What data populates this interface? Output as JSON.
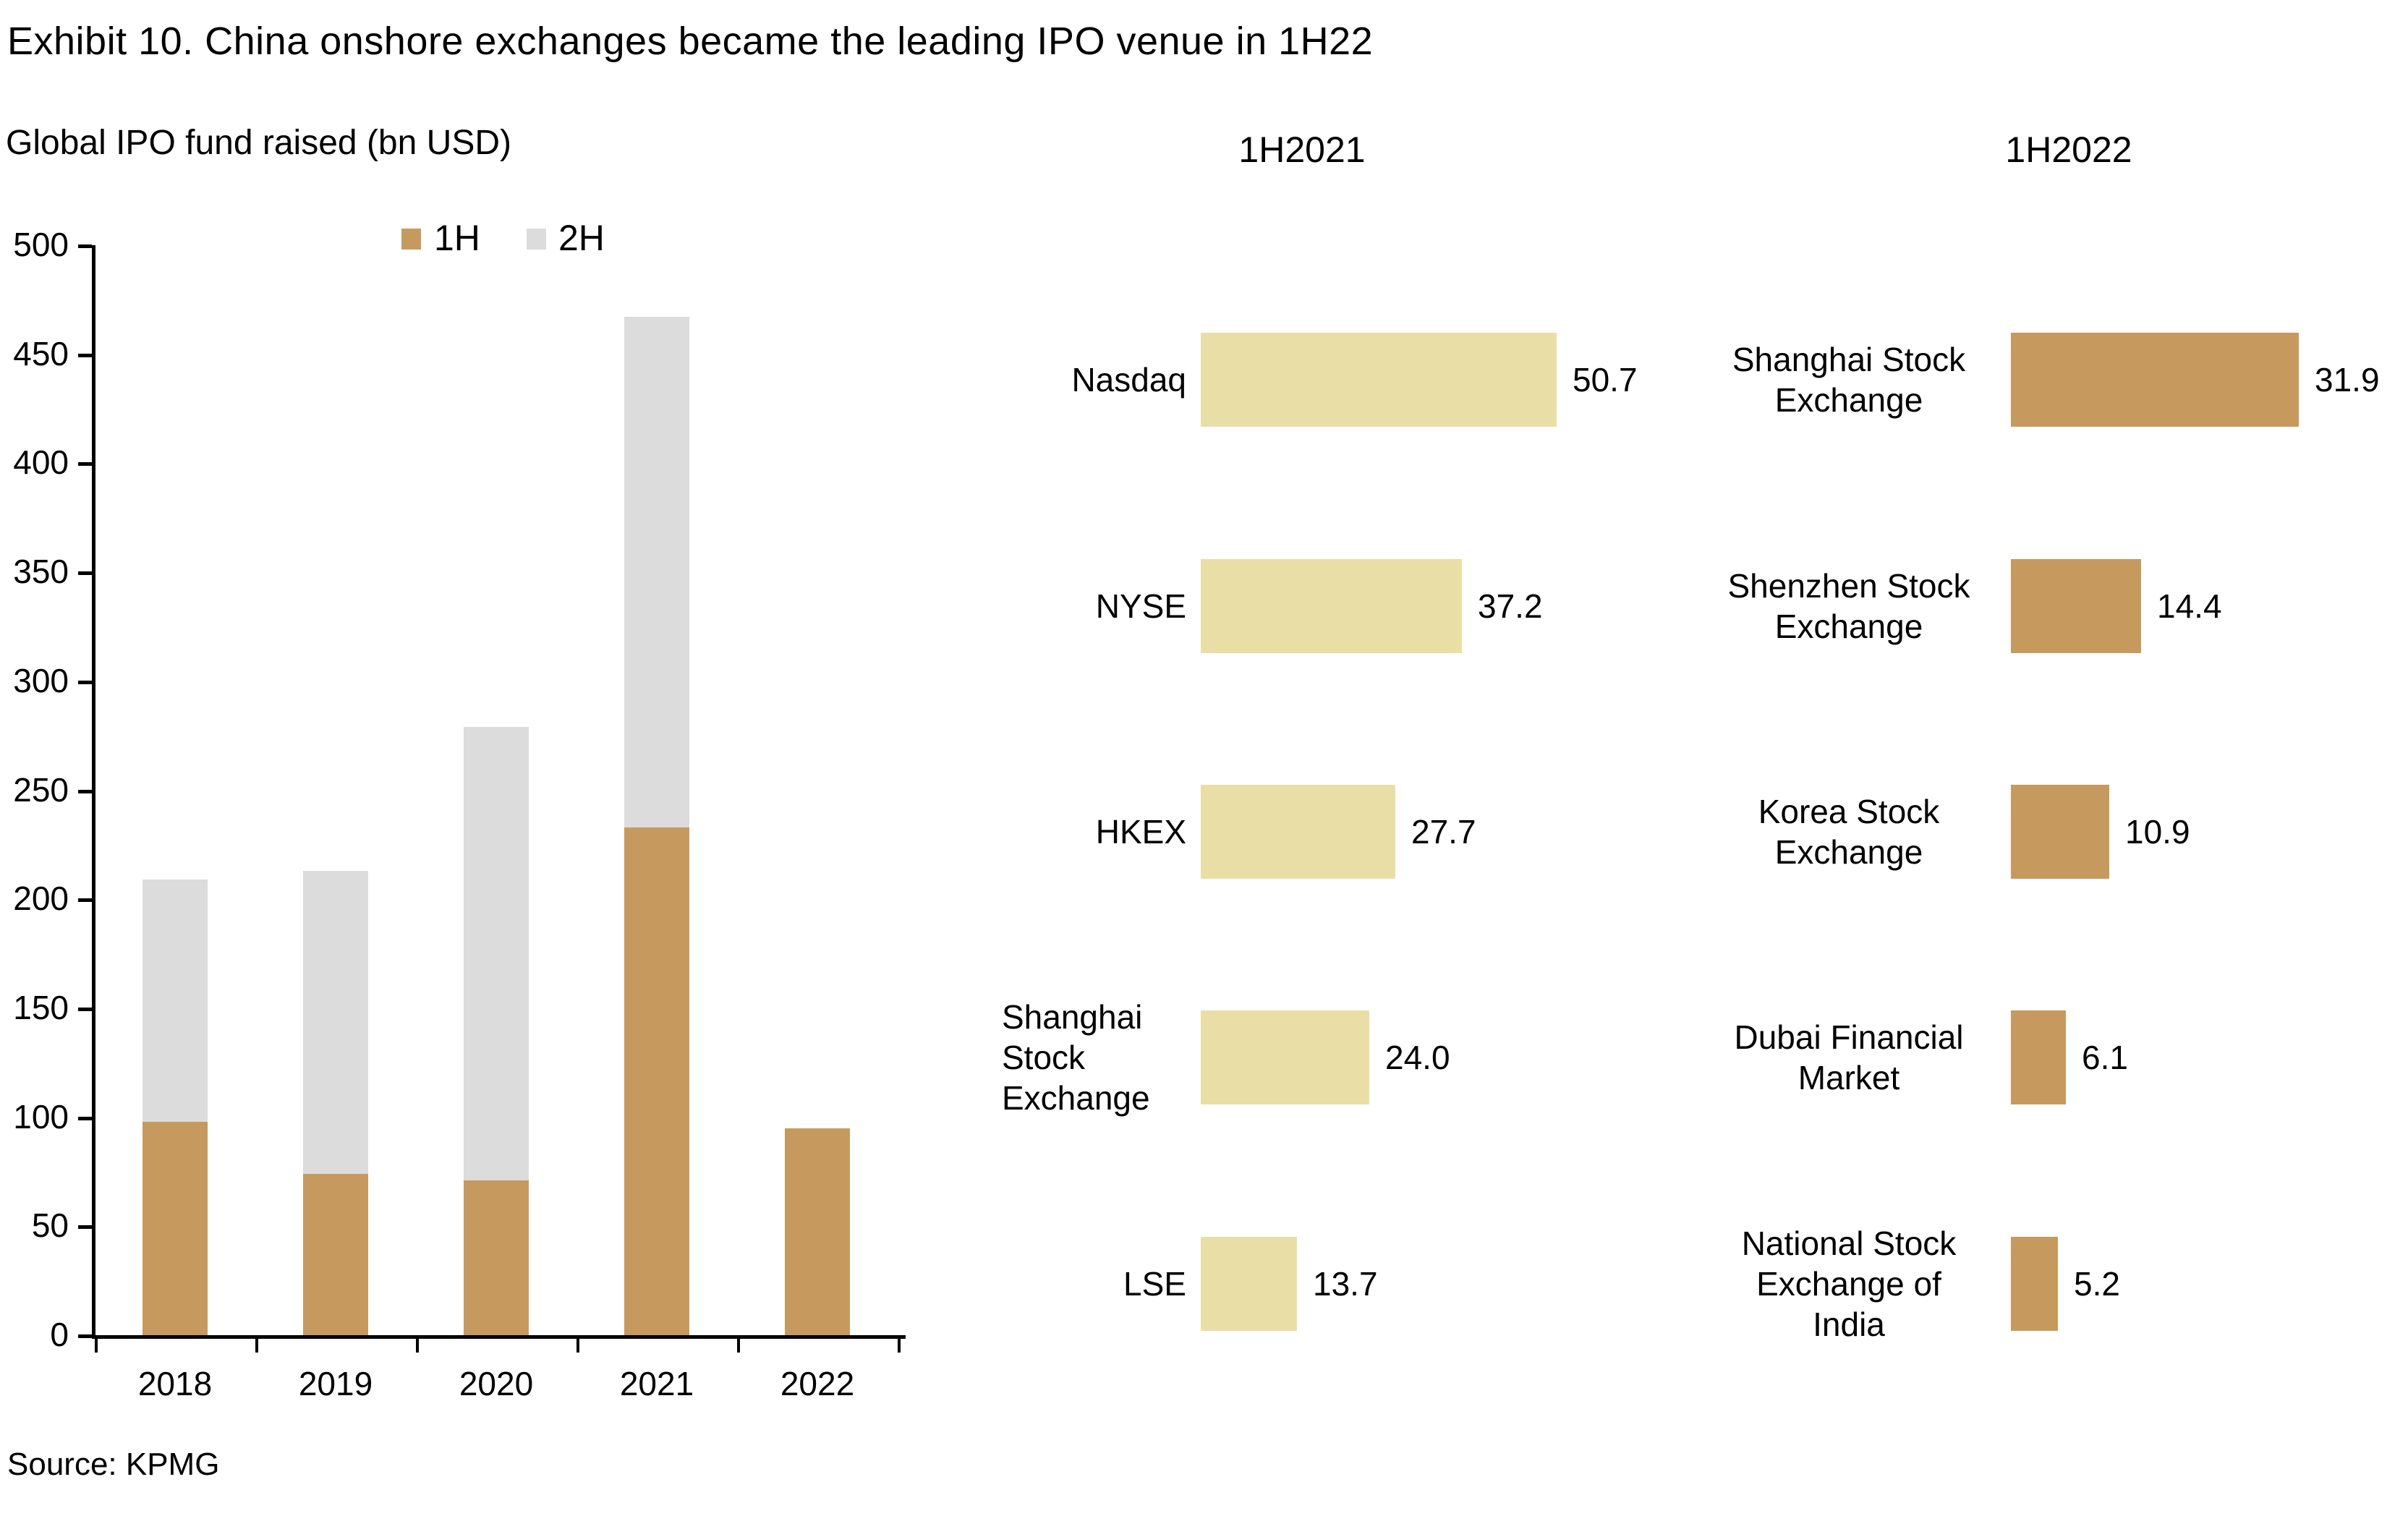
{
  "title": "Exhibit 10. China onshore exchanges became the leading IPO venue in 1H22",
  "source": "Source: KPMG",
  "colors": {
    "first_half": "#c69a5e",
    "second_half": "#dcdcdd",
    "cream_bar": "#e9dfa6",
    "text": "#000000"
  },
  "chart_data": [
    {
      "type": "bar",
      "stacked": true,
      "title": "Global IPO fund raised (bn USD)",
      "categories": [
        "2018",
        "2019",
        "2020",
        "2021",
        "2022"
      ],
      "series": [
        {
          "name": "1H",
          "color": "#c69a5e",
          "values": [
            98,
            74,
            71,
            233,
            95
          ]
        },
        {
          "name": "2H",
          "color": "#dcdcdd",
          "values": [
            111,
            139,
            208,
            234,
            0
          ]
        }
      ],
      "totals": [
        209,
        213,
        279,
        467,
        95
      ],
      "ylim": [
        0,
        500
      ],
      "ytick_step": 50,
      "ytick_labels": [
        "0",
        "50",
        "100",
        "150",
        "200",
        "250",
        "300",
        "350",
        "400",
        "450",
        "500"
      ],
      "legend_position": "top",
      "grid": false
    },
    {
      "type": "bar",
      "orientation": "horizontal",
      "title": "1H2021",
      "bar_color": "#e9dfa6",
      "categories": [
        "Nasdaq",
        "NYSE",
        "HKEX",
        "Shanghai Stock Exchange",
        "LSE"
      ],
      "category_lines": [
        [
          "Nasdaq"
        ],
        [
          "NYSE"
        ],
        [
          "HKEX"
        ],
        [
          "Shanghai",
          "Stock",
          "Exchange"
        ],
        [
          "LSE"
        ]
      ],
      "values": [
        50.7,
        37.2,
        27.7,
        24.0,
        13.7
      ],
      "value_labels": [
        "50.7",
        "37.2",
        "27.7",
        "24.0",
        "13.7"
      ],
      "xlim": [
        0,
        55
      ],
      "grid": false
    },
    {
      "type": "bar",
      "orientation": "horizontal",
      "title": "1H2022",
      "bar_color": "#c69a5e",
      "categories": [
        "Shanghai Stock Exchange",
        "Shenzhen Stock Exchange",
        "Korea Stock Exchange",
        "Dubai Financial Market",
        "National Stock Exchange of India"
      ],
      "category_lines": [
        [
          "Shanghai Stock",
          "Exchange"
        ],
        [
          "Shenzhen Stock",
          "Exchange"
        ],
        [
          "Korea Stock",
          "Exchange"
        ],
        [
          "Dubai Financial",
          "Market"
        ],
        [
          "National Stock",
          "Exchange of",
          "India"
        ]
      ],
      "values": [
        31.9,
        14.4,
        10.9,
        6.1,
        5.2
      ],
      "value_labels": [
        "31.9",
        "14.4",
        "10.9",
        "6.1",
        "5.2"
      ],
      "xlim": [
        0,
        35
      ],
      "grid": false
    }
  ]
}
